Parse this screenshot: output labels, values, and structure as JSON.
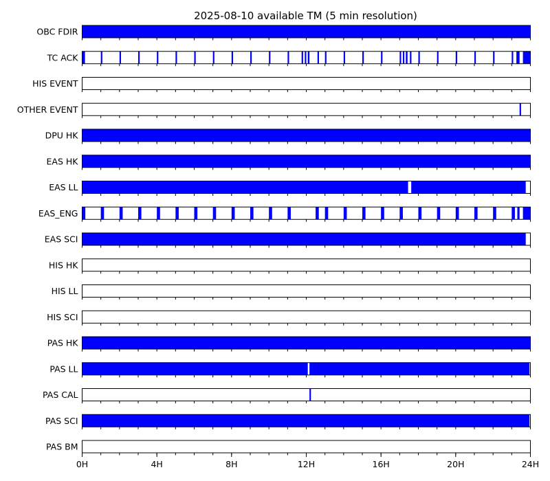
{
  "chart_data": {
    "type": "timeline",
    "title": "2025-08-10 available TM (5 min resolution)",
    "xlabel": "",
    "ylabel": "",
    "xlim": [
      0,
      24
    ],
    "x_ticks": [
      {
        "value": 0,
        "label": "0H"
      },
      {
        "value": 4,
        "label": "4H"
      },
      {
        "value": 8,
        "label": "8H"
      },
      {
        "value": 12,
        "label": "12H"
      },
      {
        "value": 16,
        "label": "16H"
      },
      {
        "value": 20,
        "label": "20H"
      },
      {
        "value": 24,
        "label": "24H"
      }
    ],
    "minor_tick_step_hours": 1,
    "colors": {
      "available": "#0000ff",
      "frame": "#000000",
      "background": "#ffffff"
    },
    "rows": [
      {
        "name": "OBC FDIR",
        "intervals": [
          [
            0,
            24
          ]
        ]
      },
      {
        "name": "TC ACK",
        "intervals": [
          [
            0.02,
            0.15
          ],
          [
            1.0,
            1.08
          ],
          [
            2.0,
            2.08
          ],
          [
            3.0,
            3.08
          ],
          [
            4.0,
            4.08
          ],
          [
            5.0,
            5.08
          ],
          [
            6.0,
            6.08
          ],
          [
            7.0,
            7.08
          ],
          [
            8.0,
            8.08
          ],
          [
            9.0,
            9.08
          ],
          [
            10.0,
            10.08
          ],
          [
            11.0,
            11.08
          ],
          [
            11.75,
            11.83
          ],
          [
            11.92,
            12.0
          ],
          [
            12.08,
            12.17
          ],
          [
            12.6,
            12.68
          ],
          [
            13.0,
            13.08
          ],
          [
            14.0,
            14.08
          ],
          [
            15.0,
            15.08
          ],
          [
            16.0,
            16.08
          ],
          [
            17.0,
            17.08
          ],
          [
            17.17,
            17.25
          ],
          [
            17.33,
            17.42
          ],
          [
            17.55,
            17.63
          ],
          [
            18.0,
            18.08
          ],
          [
            19.0,
            19.08
          ],
          [
            20.0,
            20.08
          ],
          [
            21.0,
            21.08
          ],
          [
            22.0,
            22.08
          ],
          [
            23.0,
            23.08
          ],
          [
            23.25,
            23.42
          ],
          [
            23.6,
            24.0
          ]
        ]
      },
      {
        "name": "HIS EVENT",
        "intervals": []
      },
      {
        "name": "OTHER EVENT",
        "intervals": [
          [
            23.42,
            23.5
          ]
        ]
      },
      {
        "name": "DPU HK",
        "intervals": [
          [
            0,
            24
          ]
        ]
      },
      {
        "name": "EAS HK",
        "intervals": [
          [
            0,
            24
          ]
        ]
      },
      {
        "name": "EAS LL",
        "intervals": [
          [
            0,
            17.45
          ],
          [
            17.62,
            23.75
          ]
        ]
      },
      {
        "name": "EAS_ENG",
        "intervals": [
          [
            0.0,
            0.17
          ],
          [
            1.0,
            1.17
          ],
          [
            2.0,
            2.17
          ],
          [
            3.0,
            3.17
          ],
          [
            4.0,
            4.17
          ],
          [
            5.0,
            5.17
          ],
          [
            6.0,
            6.17
          ],
          [
            7.0,
            7.17
          ],
          [
            8.0,
            8.17
          ],
          [
            9.0,
            9.17
          ],
          [
            10.0,
            10.17
          ],
          [
            11.0,
            11.17
          ],
          [
            12.5,
            12.67
          ],
          [
            13.0,
            13.17
          ],
          [
            14.0,
            14.17
          ],
          [
            15.0,
            15.17
          ],
          [
            16.0,
            16.17
          ],
          [
            17.0,
            17.17
          ],
          [
            18.0,
            18.17
          ],
          [
            19.0,
            19.17
          ],
          [
            20.0,
            20.17
          ],
          [
            21.0,
            21.17
          ],
          [
            22.0,
            22.17
          ],
          [
            23.0,
            23.17
          ],
          [
            23.3,
            23.42
          ],
          [
            23.6,
            24.0
          ]
        ]
      },
      {
        "name": "EAS SCI",
        "intervals": [
          [
            0,
            23.75
          ]
        ]
      },
      {
        "name": "HIS HK",
        "intervals": []
      },
      {
        "name": "HIS LL",
        "intervals": []
      },
      {
        "name": "HIS SCI",
        "intervals": []
      },
      {
        "name": "PAS HK",
        "intervals": [
          [
            0,
            24
          ]
        ]
      },
      {
        "name": "PAS LL",
        "intervals": [
          [
            0,
            12.08
          ],
          [
            12.17,
            23.95
          ]
        ]
      },
      {
        "name": "PAS CAL",
        "intervals": [
          [
            12.17,
            12.25
          ]
        ]
      },
      {
        "name": "PAS SCI",
        "intervals": [
          [
            0,
            23.95
          ]
        ]
      },
      {
        "name": "PAS BM",
        "intervals": []
      }
    ]
  }
}
